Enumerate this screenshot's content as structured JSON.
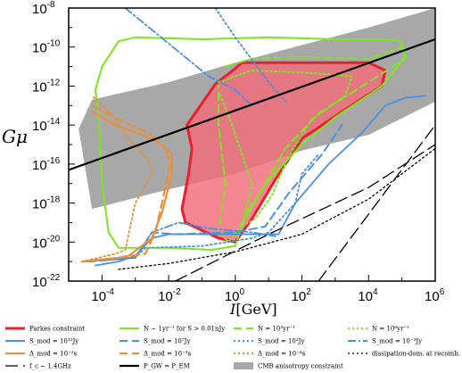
{
  "chart_data": {
    "type": "line",
    "title": "",
    "xlabel_symbol": "I",
    "xlabel_unit": "[GeV]",
    "ylabel_main": "G",
    "ylabel_mu": "μ",
    "xscale": "log",
    "yscale": "log",
    "xlim_exp": [
      -5,
      6
    ],
    "ylim_exp": [
      -22,
      -8
    ],
    "x_ticks": [
      {
        "base": "10",
        "exp": "-4"
      },
      {
        "base": "10",
        "exp": "-2"
      },
      {
        "base": "10",
        "exp": "0"
      },
      {
        "base": "10",
        "exp": "2"
      },
      {
        "base": "10",
        "exp": "4"
      },
      {
        "base": "10",
        "exp": "6"
      }
    ],
    "y_ticks": [
      {
        "base": "10",
        "exp": "-8"
      },
      {
        "base": "10",
        "exp": "-10"
      },
      {
        "base": "10",
        "exp": "-12"
      },
      {
        "base": "10",
        "exp": "-14"
      },
      {
        "base": "10",
        "exp": "-16"
      },
      {
        "base": "10",
        "exp": "-18"
      },
      {
        "base": "10",
        "exp": "-20"
      },
      {
        "base": "10",
        "exp": "-22"
      }
    ],
    "colors": {
      "parkes": "#e8202a",
      "parkes_fill": "#f26d7a",
      "green": "#7ee521",
      "blue": "#4a90e2",
      "orange": "#e8913a",
      "cmb": "#a8a8a8",
      "black": "#000000"
    },
    "regions": [
      {
        "id": "cmb",
        "points": [
          [
            -4.3,
            -12.7
          ],
          [
            -2,
            -11.8
          ],
          [
            0,
            -10.8
          ],
          [
            2,
            -9.9
          ],
          [
            4,
            -9
          ],
          [
            6,
            -8
          ],
          [
            6,
            -12.8
          ],
          [
            4,
            -14.5
          ],
          [
            2,
            -15.3
          ],
          [
            0,
            -16.5
          ],
          [
            -2,
            -17.3
          ],
          [
            -4.3,
            -18.3
          ],
          [
            -4.7,
            -14.2
          ]
        ]
      },
      {
        "id": "parkes",
        "points": [
          [
            -0.6,
            -11.9
          ],
          [
            0,
            -11.1
          ],
          [
            0.2,
            -10.8
          ],
          [
            2,
            -10.8
          ],
          [
            4,
            -10.8
          ],
          [
            4.5,
            -11.2
          ],
          [
            4.4,
            -12
          ],
          [
            3.3,
            -13.2
          ],
          [
            2,
            -14.7
          ],
          [
            1.2,
            -16.8
          ],
          [
            0.5,
            -18.8
          ],
          [
            0,
            -20
          ],
          [
            -0.5,
            -19.8
          ],
          [
            -1.5,
            -19
          ],
          [
            -1.6,
            -18.3
          ],
          [
            -1.4,
            -16.5
          ],
          [
            -1.3,
            -15.2
          ],
          [
            -1.45,
            -14
          ]
        ]
      }
    ],
    "series": [
      {
        "id": "s1",
        "color": "green",
        "style": "solid",
        "width": 2,
        "points": [
          [
            -4.2,
            -12.2
          ],
          [
            -4,
            -11
          ],
          [
            -3.5,
            -9.7
          ],
          [
            -3,
            -9.5
          ],
          [
            -1,
            -9.6
          ],
          [
            1,
            -9.5
          ],
          [
            3,
            -9.6
          ],
          [
            4.5,
            -9.6
          ],
          [
            5,
            -9.7
          ],
          [
            5.1,
            -10.5
          ],
          [
            4.4,
            -12
          ],
          [
            3,
            -13.6
          ],
          [
            2,
            -15
          ],
          [
            1,
            -16.8
          ],
          [
            0.3,
            -18.6
          ],
          [
            0,
            -20.2
          ],
          [
            -0.7,
            -20.4
          ],
          [
            -2,
            -20.3
          ],
          [
            -3.5,
            -20.3
          ],
          [
            -3.8,
            -19.5
          ],
          [
            -4,
            -17
          ],
          [
            -4.1,
            -13.5
          ],
          [
            -4.2,
            -12.2
          ]
        ]
      },
      {
        "id": "s2",
        "color": "green",
        "style": "dash",
        "width": 2,
        "points": [
          [
            -0.3,
            -11
          ],
          [
            0.5,
            -10.6
          ],
          [
            2,
            -10.5
          ],
          [
            4,
            -10.6
          ],
          [
            5,
            -10
          ],
          [
            5.1,
            -10.6
          ],
          [
            4,
            -11.8
          ],
          [
            2.5,
            -13.4
          ],
          [
            1.5,
            -15.2
          ],
          [
            0.8,
            -17.3
          ],
          [
            0.3,
            -18.8
          ],
          [
            -0.2,
            -20
          ],
          [
            -0.5,
            -19.5
          ],
          [
            -0.3,
            -17
          ],
          [
            -0.5,
            -14
          ],
          [
            -0.5,
            -12
          ]
        ]
      },
      {
        "id": "s3",
        "color": "green",
        "style": "dot",
        "width": 2,
        "points": [
          [
            -0.5,
            -11.8
          ],
          [
            0.5,
            -11.2
          ],
          [
            2,
            -11.3
          ],
          [
            3.5,
            -11.5
          ],
          [
            3.3,
            -12.5
          ],
          [
            2.3,
            -13.7
          ],
          [
            1.6,
            -15.6
          ],
          [
            1.1,
            -17.6
          ],
          [
            0.6,
            -18.8
          ],
          [
            0.2,
            -19.2
          ],
          [
            0.5,
            -17
          ],
          [
            0.1,
            -15
          ],
          [
            -0.2,
            -13.5
          ],
          [
            -0.5,
            -12.3
          ]
        ]
      },
      {
        "id": "s4",
        "color": "blue",
        "style": "solid",
        "width": 1.8,
        "points": [
          [
            -4.2,
            -21.2
          ],
          [
            -3.5,
            -21
          ],
          [
            -3,
            -20.7
          ],
          [
            -2.5,
            -19.8
          ],
          [
            -2,
            -19.6
          ],
          [
            0,
            -19.6
          ],
          [
            1.3,
            -19.6
          ],
          [
            1.8,
            -18
          ],
          [
            2.8,
            -16
          ],
          [
            3.8,
            -14.4
          ],
          [
            4.5,
            -13
          ],
          [
            5.1,
            -12.6
          ],
          [
            5.7,
            -12.5
          ]
        ]
      },
      {
        "id": "s5",
        "color": "blue",
        "style": "dash",
        "width": 2,
        "points": [
          [
            -4.4,
            -21
          ],
          [
            -3,
            -20.8
          ],
          [
            -2.5,
            -19.5
          ],
          [
            -1.8,
            -19.6
          ],
          [
            0,
            -19.5
          ],
          [
            0.9,
            -19.2
          ],
          [
            1.6,
            -17.5
          ],
          [
            2.6,
            -15.5
          ],
          [
            3.2,
            -14
          ]
        ]
      },
      {
        "id": "s6",
        "color": "blue",
        "style": "dot",
        "width": 1.8,
        "points": [
          [
            -4.5,
            -21
          ],
          [
            -3,
            -20.8
          ],
          [
            -2.7,
            -20.3
          ],
          [
            -1,
            -20.2
          ],
          [
            0.5,
            -19.8
          ],
          [
            1,
            -19.5
          ],
          [
            1.8,
            -18
          ],
          [
            2,
            -16.5
          ],
          [
            2.5,
            -15.5
          ]
        ]
      },
      {
        "id": "s7",
        "color": "blue",
        "style": "dashdot",
        "width": 1.8,
        "points": [
          [
            -4.4,
            -21
          ],
          [
            -3,
            -20.8
          ],
          [
            -2.5,
            -19.5
          ],
          [
            -1.7,
            -19
          ],
          [
            -0.8,
            -19.3
          ],
          [
            0.5,
            -19.5
          ],
          [
            1.2,
            -19.7
          ]
        ]
      },
      {
        "id": "s8",
        "color": "blue",
        "style": "dashdot",
        "width": 1.8,
        "points": [
          [
            -3.3,
            -8
          ],
          [
            -0.8,
            -11.5
          ],
          [
            0,
            -12.2
          ],
          [
            0.5,
            -13
          ]
        ]
      },
      {
        "id": "s9",
        "color": "blue",
        "style": "dot",
        "width": 1.8,
        "points": [
          [
            -0.6,
            -8
          ],
          [
            0,
            -9.5
          ],
          [
            1,
            -11.8
          ],
          [
            1.5,
            -12.8
          ]
        ]
      },
      {
        "id": "s10",
        "color": "orange",
        "style": "solid",
        "width": 2.2,
        "points": [
          [
            -4.6,
            -21
          ],
          [
            -3.5,
            -20.8
          ],
          [
            -3.2,
            -20.7
          ],
          [
            -2.5,
            -19.8
          ],
          [
            -2.2,
            -18.5
          ],
          [
            -1.9,
            -16.5
          ],
          [
            -1.9,
            -15.5
          ],
          [
            -2.2,
            -15
          ],
          [
            -2.8,
            -14.5
          ],
          [
            -3.6,
            -14
          ],
          [
            -4.3,
            -13.3
          ]
        ]
      },
      {
        "id": "s11",
        "color": "orange",
        "style": "dash",
        "width": 2.2,
        "points": [
          [
            -4.6,
            -21
          ],
          [
            -3.5,
            -20.8
          ],
          [
            -2.7,
            -20.6
          ],
          [
            -2.4,
            -19.5
          ],
          [
            -2.2,
            -18
          ],
          [
            -1.95,
            -16
          ],
          [
            -2.1,
            -15.2
          ],
          [
            -2.6,
            -14.4
          ],
          [
            -3.4,
            -13.8
          ],
          [
            -4.3,
            -13
          ]
        ]
      },
      {
        "id": "s12",
        "color": "orange",
        "style": "dot",
        "width": 1.8,
        "points": [
          [
            -4.6,
            -21
          ],
          [
            -3.6,
            -20.6
          ],
          [
            -3.3,
            -20.4
          ],
          [
            -3,
            -18
          ],
          [
            -2.5,
            -16.5
          ],
          [
            -2.6,
            -15.8
          ],
          [
            -3.3,
            -14.5
          ],
          [
            -3.8,
            -13.3
          ],
          [
            -4.3,
            -12.5
          ]
        ]
      },
      {
        "id": "s13",
        "color": "black",
        "style": "dot",
        "width": 1.3,
        "points": [
          [
            -3.5,
            -21.4
          ],
          [
            -2,
            -21.1
          ],
          [
            0,
            -20.5
          ],
          [
            2,
            -19.6
          ],
          [
            4,
            -17.8
          ],
          [
            5,
            -16.5
          ],
          [
            6,
            -15.2
          ]
        ]
      },
      {
        "id": "s14",
        "color": "black",
        "style": "longdash",
        "width": 1.3,
        "points": [
          [
            -1.8,
            -22
          ],
          [
            1,
            -19.6
          ],
          [
            4,
            -17.2
          ],
          [
            6,
            -15
          ]
        ]
      },
      {
        "id": "s15",
        "color": "black",
        "style": "longdash",
        "width": 1.3,
        "points": [
          [
            2.5,
            -22
          ],
          [
            6,
            -14
          ]
        ]
      },
      {
        "id": "s16",
        "color": "black",
        "style": "solid",
        "width": 2.2,
        "points": [
          [
            -5,
            -16.3
          ],
          [
            6,
            -9.6
          ]
        ]
      }
    ],
    "legend": [
      {
        "name": "Parkes constraint",
        "color": "parkes",
        "style": "solid",
        "width": 3
      },
      {
        "name": "Ṅ ∼ 1yr⁻¹ for S > 0.01nJy",
        "color": "green",
        "style": "solid",
        "width": 2
      },
      {
        "name": "Ṅ = 10³yr⁻¹",
        "color": "green",
        "style": "dash",
        "width": 2
      },
      {
        "name": "Ṅ = 10⁶yr⁻¹",
        "color": "green",
        "style": "dot",
        "width": 2
      },
      {
        "name": "S_mod = 10¹²Jy",
        "color": "blue",
        "style": "solid",
        "width": 2
      },
      {
        "name": "S_mod = 10⁷Jy",
        "color": "blue",
        "style": "dash",
        "width": 2
      },
      {
        "name": "S_mod = 10²Jy",
        "color": "blue",
        "style": "dot",
        "width": 2
      },
      {
        "name": "S_mod = 10⁻³Jy",
        "color": "blue",
        "style": "dashdot",
        "width": 2
      },
      {
        "name": "Δ_mod = 10⁻²s",
        "color": "orange",
        "style": "solid",
        "width": 2
      },
      {
        "name": "Δ_mod = 10⁻³s",
        "color": "orange",
        "style": "dash",
        "width": 2
      },
      {
        "name": "Δ_mod = 10⁻⁴s",
        "color": "orange",
        "style": "dot",
        "width": 2
      },
      {
        "name": "dissipation-dom. at recomb.",
        "color": "black",
        "style": "dot",
        "width": 1.3
      },
      {
        "name": "f_c ∼ 1.4GHz",
        "color": "black",
        "style": "longdash",
        "width": 1.3
      },
      {
        "name": "P_GW = P_EM",
        "color": "black",
        "style": "solid",
        "width": 2.2
      },
      {
        "name": "CMB anisotropy constraint",
        "color": "cmb",
        "style": "box",
        "width": 0
      }
    ]
  }
}
